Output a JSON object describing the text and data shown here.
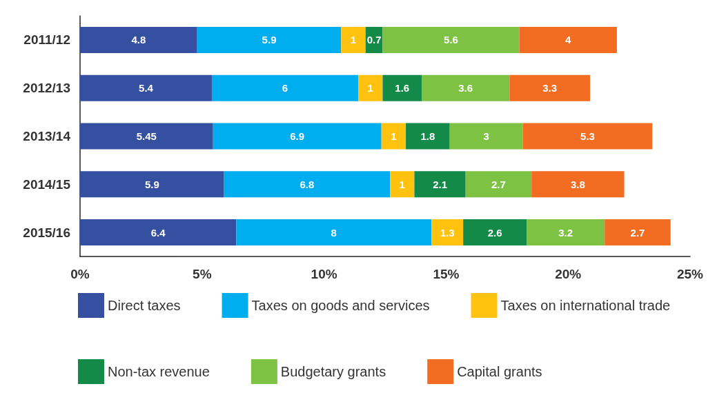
{
  "chart_data": {
    "type": "bar",
    "orientation": "horizontal",
    "stacked": true,
    "data_labels": true,
    "grid": false,
    "legend": "bottom",
    "categories": [
      "2011/12",
      "2012/13",
      "2013/14",
      "2014/15",
      "2015/16"
    ],
    "xlim": [
      0,
      25
    ],
    "xticks": [
      {
        "value": 0,
        "label": "0%"
      },
      {
        "value": 5,
        "label": "5%"
      },
      {
        "value": 10,
        "label": "10%"
      },
      {
        "value": 15,
        "label": "15%"
      },
      {
        "value": 20,
        "label": "20%"
      },
      {
        "value": 25,
        "label": "25%"
      }
    ],
    "series": [
      {
        "name": "Direct taxes",
        "color": "#3550a0",
        "values": [
          4.8,
          5.4,
          5.45,
          5.9,
          6.4
        ]
      },
      {
        "name": "Taxes on goods and services",
        "color": "#00adef",
        "values": [
          5.9,
          6,
          6.9,
          6.8,
          8
        ]
      },
      {
        "name": "Taxes on international trade",
        "color": "#ffc20e",
        "values": [
          1,
          1,
          1,
          1,
          1.3
        ]
      },
      {
        "name": "Non-tax revenue",
        "color": "#138a48",
        "values": [
          0.7,
          1.6,
          1.8,
          2.1,
          2.6
        ]
      },
      {
        "name": "Budgetary grants",
        "color": "#7dc242",
        "values": [
          5.6,
          3.6,
          3,
          2.7,
          3.2
        ]
      },
      {
        "name": "Capital grants",
        "color": "#f26d22",
        "values": [
          4,
          3.3,
          5.3,
          3.8,
          2.7
        ]
      }
    ]
  }
}
